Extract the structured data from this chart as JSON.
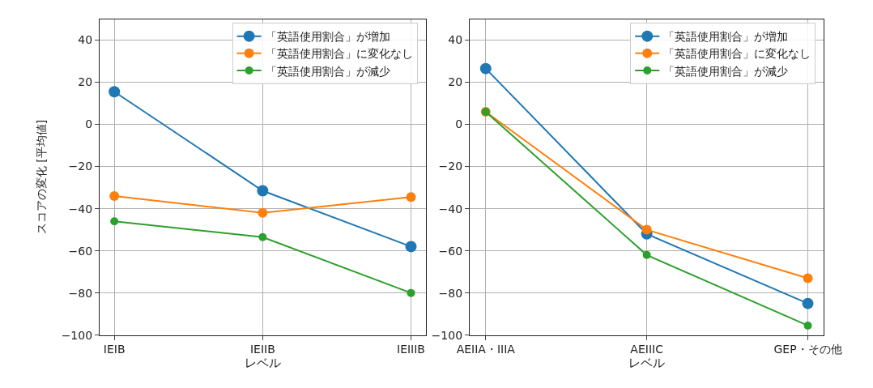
{
  "chart_data": [
    {
      "type": "line",
      "xlabel": "レベル",
      "ylabel": "スコアの変化 [平均値]",
      "categories": [
        "IEIB",
        "IEIIB",
        "IEIIIB"
      ],
      "series": [
        {
          "name": "「英語使用割合」が増加",
          "color": "#1f77b4",
          "values": [
            15.5,
            -31.5,
            -58
          ]
        },
        {
          "name": "「英語使用割合」に変化なし",
          "color": "#ff7f0e",
          "values": [
            -34,
            -42,
            -34.5
          ]
        },
        {
          "name": "「英語使用割合」が減少",
          "color": "#2ca02c",
          "values": [
            -46,
            -53.5,
            -80
          ]
        }
      ],
      "ylim": [
        -100,
        50
      ],
      "yticks": [
        -100,
        -80,
        -60,
        -40,
        -20,
        0,
        20,
        40
      ],
      "grid": true,
      "legend": "top right",
      "marker": "circle",
      "line_style": "solid"
    },
    {
      "type": "line",
      "xlabel": "レベル",
      "categories": [
        "AEIIA・IIIA",
        "AEIIIC",
        "GEP・その他"
      ],
      "series": [
        {
          "name": "「英語使用割合」が増加",
          "color": "#1f77b4",
          "values": [
            26.5,
            -52,
            -85
          ]
        },
        {
          "name": "「英語使用割合」に変化なし",
          "color": "#ff7f0e",
          "values": [
            6,
            -50,
            -73
          ]
        },
        {
          "name": "「英語使用割合」が減少",
          "color": "#2ca02c",
          "values": [
            6,
            -62,
            -95.5
          ]
        }
      ],
      "ylim": [
        -100,
        50
      ],
      "yticks": [
        -100,
        -80,
        -60,
        -40,
        -20,
        0,
        20,
        40
      ],
      "grid": true,
      "legend": "top right",
      "marker": "circle",
      "line_style": "solid"
    }
  ]
}
